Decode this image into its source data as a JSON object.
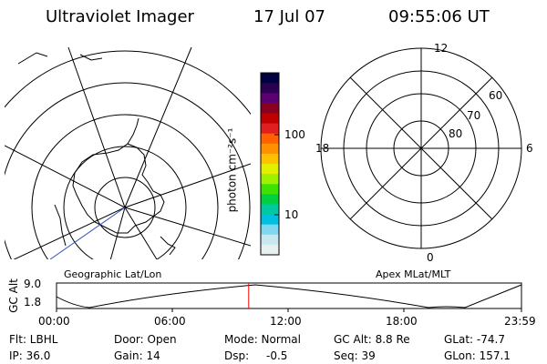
{
  "header": {
    "title": "Ultraviolet Imager",
    "date": "17 Jul 07",
    "time": "09:55:06 UT"
  },
  "colorbar": {
    "label": "photon cm⁻²s⁻¹",
    "ticks": [
      "100",
      "10"
    ],
    "colors": [
      "#000040",
      "#2a0050",
      "#5a0070",
      "#8a0020",
      "#c00000",
      "#e02020",
      "#ff6000",
      "#ff9000",
      "#ffc000",
      "#e0f000",
      "#a0f000",
      "#40e000",
      "#00d040",
      "#00c8a0",
      "#00c0e0",
      "#80d8f0",
      "#c8e8f0",
      "#e8f0f0"
    ]
  },
  "left_map": {
    "caption": "Geographic Lat/Lon"
  },
  "right_map": {
    "caption": "Apex MLat/MLT",
    "mlt_labels": {
      "top": "12",
      "left": "18",
      "right": "6",
      "bottom": "0"
    },
    "lat_labels": [
      "60",
      "70",
      "80"
    ]
  },
  "timeline": {
    "ylabel": "GC Alt",
    "y_ticks": [
      "9.0",
      "1.8"
    ],
    "x_ticks": [
      "00:00",
      "06:00",
      "12:00",
      "18:00",
      "23:59"
    ],
    "current_time_fraction": 0.4133,
    "marker_color": "#ff0000"
  },
  "info": {
    "flt": "Flt: LBHL",
    "door": "Door: Open",
    "mode": "Mode: Normal",
    "gc_alt": "GC Alt: 8.8 Re",
    "glat": "GLat: -74.7",
    "ip": "IP: 36.0",
    "gain": "Gain: 14",
    "dsp_label": "Dsp:",
    "dsp_value": "-0.5",
    "seq": "Seq: 39",
    "glon": "GLon: 157.1"
  }
}
